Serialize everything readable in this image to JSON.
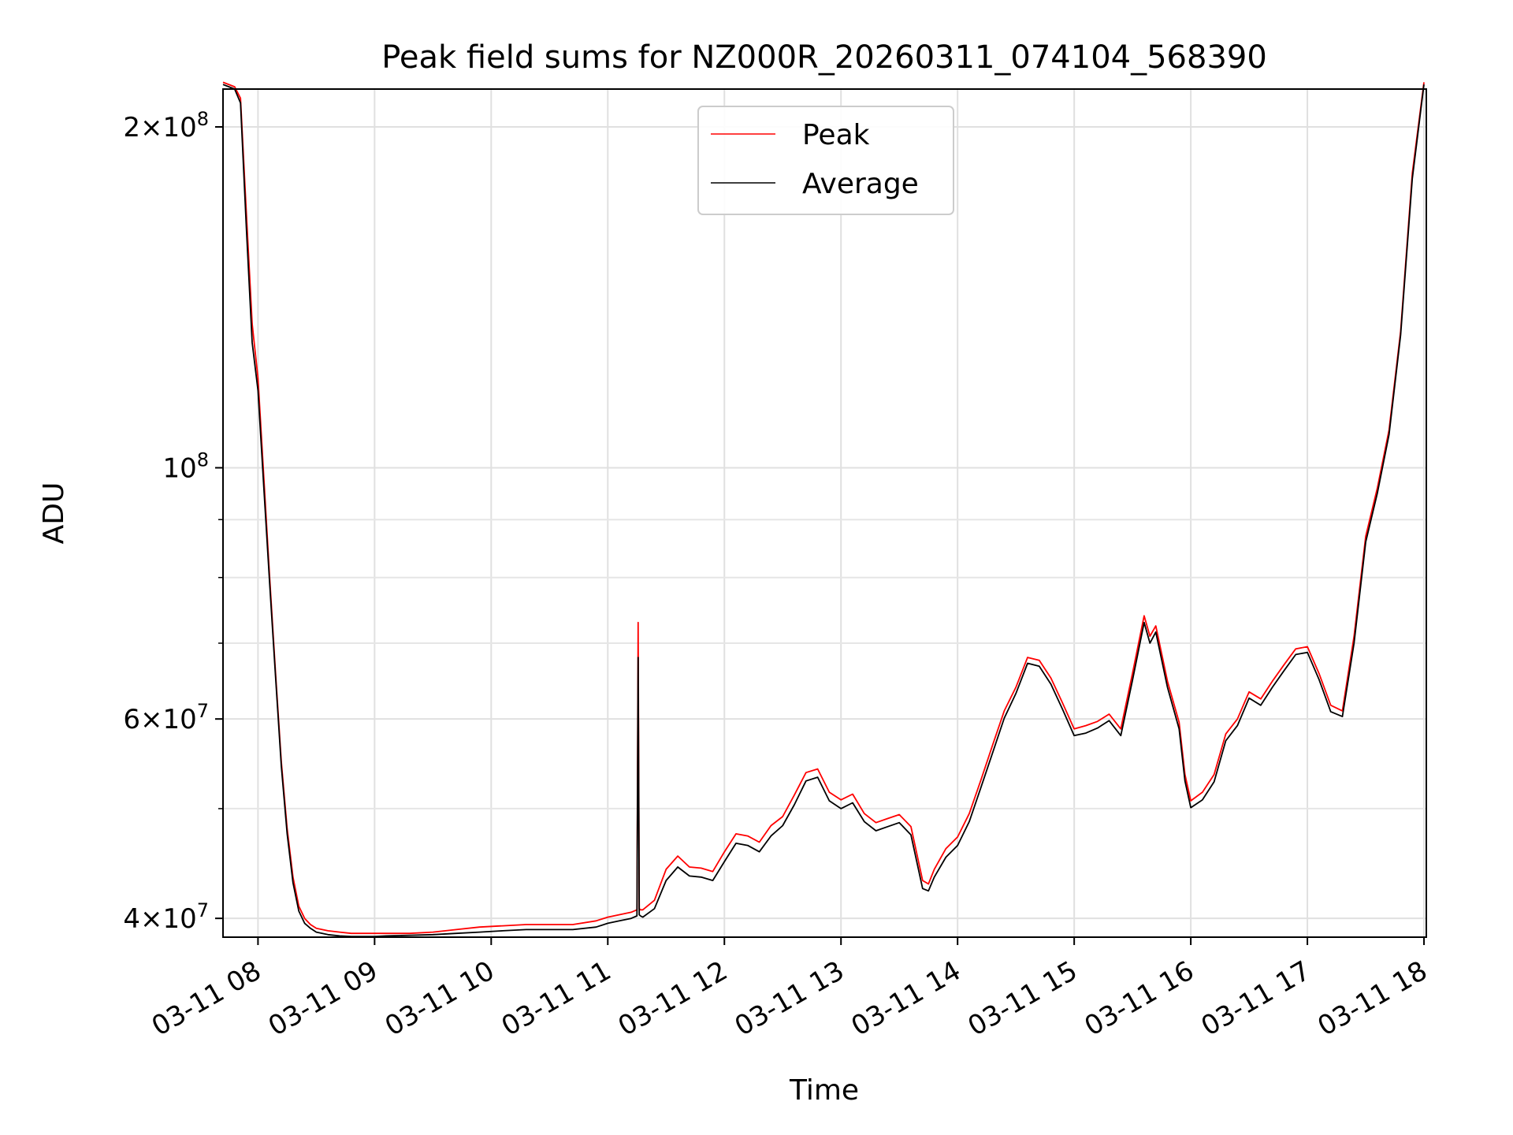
{
  "chart_data": {
    "type": "line",
    "title": "Peak field sums for NZ000R_20260311_074104_568390",
    "xlabel": "Time",
    "ylabel": "ADU",
    "yscale": "log",
    "xlim": [
      7.7,
      18.02
    ],
    "ylim": [
      38500000,
      216000000
    ],
    "grid": true,
    "legend_position": "upper center",
    "x_ticks": [
      {
        "value": 8,
        "label": "03-11 08"
      },
      {
        "value": 9,
        "label": "03-11 09"
      },
      {
        "value": 10,
        "label": "03-11 10"
      },
      {
        "value": 11,
        "label": "03-11 11"
      },
      {
        "value": 12,
        "label": "03-11 12"
      },
      {
        "value": 13,
        "label": "03-11 13"
      },
      {
        "value": 14,
        "label": "03-11 14"
      },
      {
        "value": 15,
        "label": "03-11 15"
      },
      {
        "value": 16,
        "label": "03-11 16"
      },
      {
        "value": 17,
        "label": "03-11 17"
      },
      {
        "value": 18,
        "label": "03-11 18"
      }
    ],
    "y_major_ticks": [
      {
        "value": 40000000,
        "mantissa": "4",
        "exponent": "7"
      },
      {
        "value": 60000000,
        "mantissa": "6",
        "exponent": "7"
      },
      {
        "value": 100000000,
        "mantissa": "",
        "exponent": "8"
      },
      {
        "value": 200000000,
        "mantissa": "2",
        "exponent": "8"
      }
    ],
    "y_minor_ticks": [
      50000000,
      70000000,
      80000000,
      90000000
    ],
    "series": [
      {
        "name": "Peak",
        "color": "#ff0000",
        "x": [
          7.7,
          7.8,
          7.85,
          7.9,
          7.95,
          8.0,
          8.05,
          8.1,
          8.15,
          8.2,
          8.25,
          8.3,
          8.35,
          8.4,
          8.45,
          8.5,
          8.6,
          8.7,
          8.8,
          8.9,
          9.0,
          9.1,
          9.3,
          9.5,
          9.7,
          9.9,
          10.1,
          10.3,
          10.5,
          10.7,
          10.9,
          11.0,
          11.1,
          11.2,
          11.25,
          11.26,
          11.27,
          11.28,
          11.3,
          11.4,
          11.5,
          11.6,
          11.7,
          11.8,
          11.9,
          12.0,
          12.1,
          12.2,
          12.3,
          12.4,
          12.5,
          12.6,
          12.7,
          12.8,
          12.9,
          13.0,
          13.1,
          13.2,
          13.3,
          13.4,
          13.5,
          13.6,
          13.7,
          13.75,
          13.8,
          13.9,
          14.0,
          14.1,
          14.2,
          14.3,
          14.4,
          14.5,
          14.6,
          14.7,
          14.8,
          14.9,
          15.0,
          15.1,
          15.2,
          15.3,
          15.4,
          15.5,
          15.6,
          15.65,
          15.7,
          15.8,
          15.9,
          15.95,
          16.0,
          16.1,
          16.2,
          16.3,
          16.4,
          16.5,
          16.6,
          16.7,
          16.8,
          16.9,
          17.0,
          17.1,
          17.2,
          17.3,
          17.4,
          17.5,
          17.6,
          17.7,
          17.8,
          17.9,
          18.0
        ],
        "y": [
          219000000,
          217000000,
          212000000,
          168000000,
          134000000,
          120000000,
          98000000,
          80000000,
          66000000,
          55000000,
          48000000,
          43500000,
          41000000,
          40000000,
          39500000,
          39200000,
          39000000,
          38900000,
          38800000,
          38800000,
          38800000,
          38800000,
          38800000,
          38900000,
          39100000,
          39300000,
          39400000,
          39500000,
          39500000,
          39500000,
          39800000,
          40100000,
          40300000,
          40500000,
          40700000,
          73000000,
          40800000,
          40700000,
          40700000,
          41500000,
          44200000,
          45400000,
          44400000,
          44300000,
          44000000,
          45800000,
          47500000,
          47300000,
          46700000,
          48300000,
          49200000,
          51400000,
          53800000,
          54200000,
          51700000,
          50900000,
          51500000,
          49500000,
          48600000,
          49000000,
          49400000,
          48200000,
          43200000,
          42900000,
          44200000,
          46100000,
          47200000,
          49500000,
          53000000,
          56900000,
          61000000,
          64000000,
          68000000,
          67600000,
          65200000,
          62000000,
          58800000,
          59200000,
          59700000,
          60600000,
          58800000,
          65800000,
          74000000,
          71000000,
          72500000,
          64800000,
          59600000,
          53600000,
          50800000,
          51700000,
          53600000,
          58200000,
          60000000,
          63400000,
          62500000,
          64800000,
          67000000,
          69200000,
          69500000,
          65800000,
          61700000,
          61000000,
          71000000,
          87000000,
          96000000,
          108000000,
          132000000,
          182000000,
          219000000
        ]
      },
      {
        "name": "Average",
        "color": "#000000",
        "x": [
          7.7,
          7.8,
          7.85,
          7.9,
          7.95,
          8.0,
          8.05,
          8.1,
          8.15,
          8.2,
          8.25,
          8.3,
          8.35,
          8.4,
          8.45,
          8.5,
          8.6,
          8.7,
          8.8,
          8.9,
          9.0,
          9.1,
          9.3,
          9.5,
          9.7,
          9.9,
          10.1,
          10.3,
          10.5,
          10.7,
          10.9,
          11.0,
          11.1,
          11.2,
          11.25,
          11.26,
          11.27,
          11.28,
          11.3,
          11.4,
          11.5,
          11.6,
          11.7,
          11.8,
          11.9,
          12.0,
          12.1,
          12.2,
          12.3,
          12.4,
          12.5,
          12.6,
          12.7,
          12.8,
          12.9,
          13.0,
          13.1,
          13.2,
          13.3,
          13.4,
          13.5,
          13.6,
          13.7,
          13.75,
          13.8,
          13.9,
          14.0,
          14.1,
          14.2,
          14.3,
          14.4,
          14.5,
          14.6,
          14.7,
          14.8,
          14.9,
          15.0,
          15.1,
          15.2,
          15.3,
          15.4,
          15.5,
          15.6,
          15.65,
          15.7,
          15.8,
          15.9,
          15.95,
          16.0,
          16.1,
          16.2,
          16.3,
          16.4,
          16.5,
          16.6,
          16.7,
          16.8,
          16.9,
          17.0,
          17.1,
          17.2,
          17.3,
          17.4,
          17.5,
          17.6,
          17.7,
          17.8,
          17.9,
          18.0
        ],
        "y": [
          218000000,
          216000000,
          210000000,
          163000000,
          129000000,
          117000000,
          96000000,
          79000000,
          65500000,
          54500000,
          47500000,
          43000000,
          40600000,
          39600000,
          39200000,
          38900000,
          38700000,
          38600000,
          38550000,
          38550000,
          38550000,
          38600000,
          38650000,
          38700000,
          38800000,
          38900000,
          39000000,
          39100000,
          39100000,
          39100000,
          39300000,
          39600000,
          39800000,
          40000000,
          40200000,
          68000000,
          40300000,
          40200000,
          40100000,
          40800000,
          43200000,
          44400000,
          43600000,
          43500000,
          43200000,
          44900000,
          46600000,
          46400000,
          45800000,
          47300000,
          48300000,
          50400000,
          52900000,
          53300000,
          50800000,
          50000000,
          50600000,
          48700000,
          47800000,
          48200000,
          48600000,
          47400000,
          42500000,
          42300000,
          43500000,
          45300000,
          46400000,
          48700000,
          52200000,
          56000000,
          60100000,
          63200000,
          67200000,
          66800000,
          64400000,
          61200000,
          58000000,
          58300000,
          58900000,
          59800000,
          58000000,
          64900000,
          73000000,
          70000000,
          71600000,
          64000000,
          58800000,
          52900000,
          50100000,
          50900000,
          52800000,
          57400000,
          59200000,
          62600000,
          61700000,
          64000000,
          66200000,
          68400000,
          68700000,
          65000000,
          60900000,
          60300000,
          70000000,
          86000000,
          95000000,
          107000000,
          131000000,
          180000000,
          218000000
        ]
      }
    ]
  }
}
